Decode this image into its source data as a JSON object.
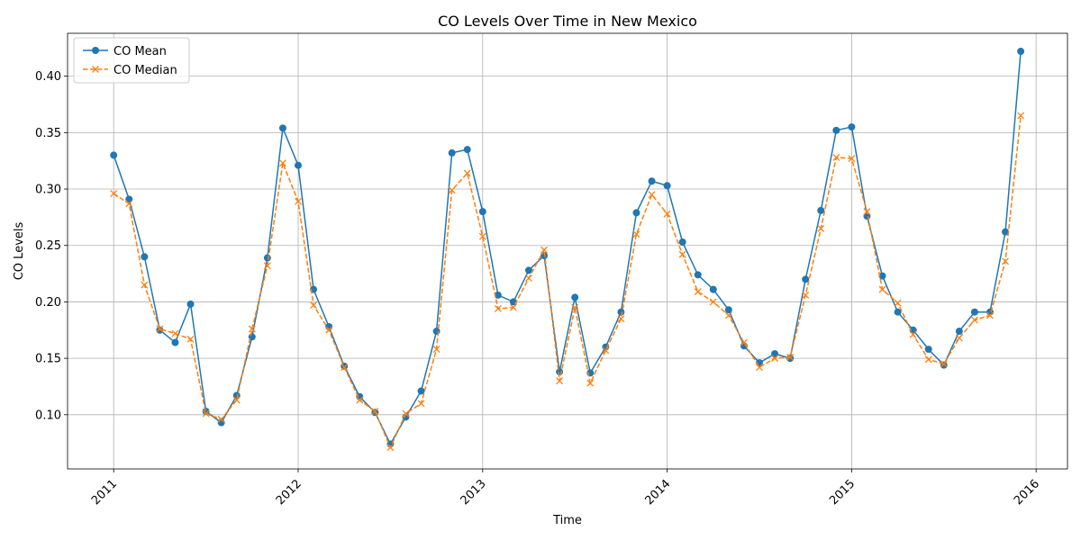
{
  "chart_data": {
    "type": "line",
    "title": "CO Levels Over Time in New Mexico",
    "xlabel": "Time",
    "ylabel": "CO Levels",
    "xlim": [
      2010.75,
      2016.17
    ],
    "ylim": [
      0.052,
      0.438
    ],
    "grid": true,
    "legend_position": "top-left",
    "x_ticks": [
      2011,
      2012,
      2013,
      2014,
      2015,
      2016
    ],
    "x_tick_labels": [
      "2011",
      "2012",
      "2013",
      "2014",
      "2015",
      "2016"
    ],
    "y_ticks": [
      0.1,
      0.15,
      0.2,
      0.25,
      0.3,
      0.35,
      0.4
    ],
    "y_tick_labels": [
      "0.10",
      "0.15",
      "0.20",
      "0.25",
      "0.30",
      "0.35",
      "0.40"
    ],
    "x_start_year": 2011,
    "points_per_year": 12,
    "series": [
      {
        "name": "CO Mean",
        "color": "#1f77b4",
        "style": "solid",
        "marker": "circle",
        "values": [
          0.33,
          0.291,
          0.24,
          0.175,
          0.164,
          0.198,
          0.103,
          0.093,
          0.117,
          0.169,
          0.239,
          0.354,
          0.321,
          0.211,
          0.178,
          0.143,
          0.116,
          0.102,
          0.074,
          0.098,
          0.121,
          0.174,
          0.332,
          0.335,
          0.28,
          0.206,
          0.2,
          0.228,
          0.241,
          0.138,
          0.204,
          0.137,
          0.16,
          0.191,
          0.279,
          0.307,
          0.303,
          0.253,
          0.224,
          0.211,
          0.193,
          0.161,
          0.146,
          0.154,
          0.15,
          0.22,
          0.281,
          0.352,
          0.355,
          0.276,
          0.223,
          0.191,
          0.175,
          0.158,
          0.144,
          0.174,
          0.191,
          0.191,
          0.262,
          0.422
        ]
      },
      {
        "name": "CO Median",
        "color": "#ff7f0e",
        "style": "dashed",
        "marker": "x",
        "values": [
          0.296,
          0.287,
          0.215,
          0.176,
          0.172,
          0.167,
          0.101,
          0.096,
          0.113,
          0.176,
          0.232,
          0.323,
          0.289,
          0.197,
          0.175,
          0.142,
          0.113,
          0.103,
          0.071,
          0.101,
          0.11,
          0.158,
          0.299,
          0.314,
          0.258,
          0.194,
          0.195,
          0.221,
          0.246,
          0.13,
          0.195,
          0.128,
          0.157,
          0.185,
          0.26,
          0.295,
          0.278,
          0.242,
          0.209,
          0.2,
          0.188,
          0.164,
          0.142,
          0.15,
          0.151,
          0.206,
          0.265,
          0.328,
          0.327,
          0.28,
          0.211,
          0.199,
          0.171,
          0.149,
          0.145,
          0.168,
          0.184,
          0.188,
          0.236,
          0.365
        ]
      }
    ]
  }
}
